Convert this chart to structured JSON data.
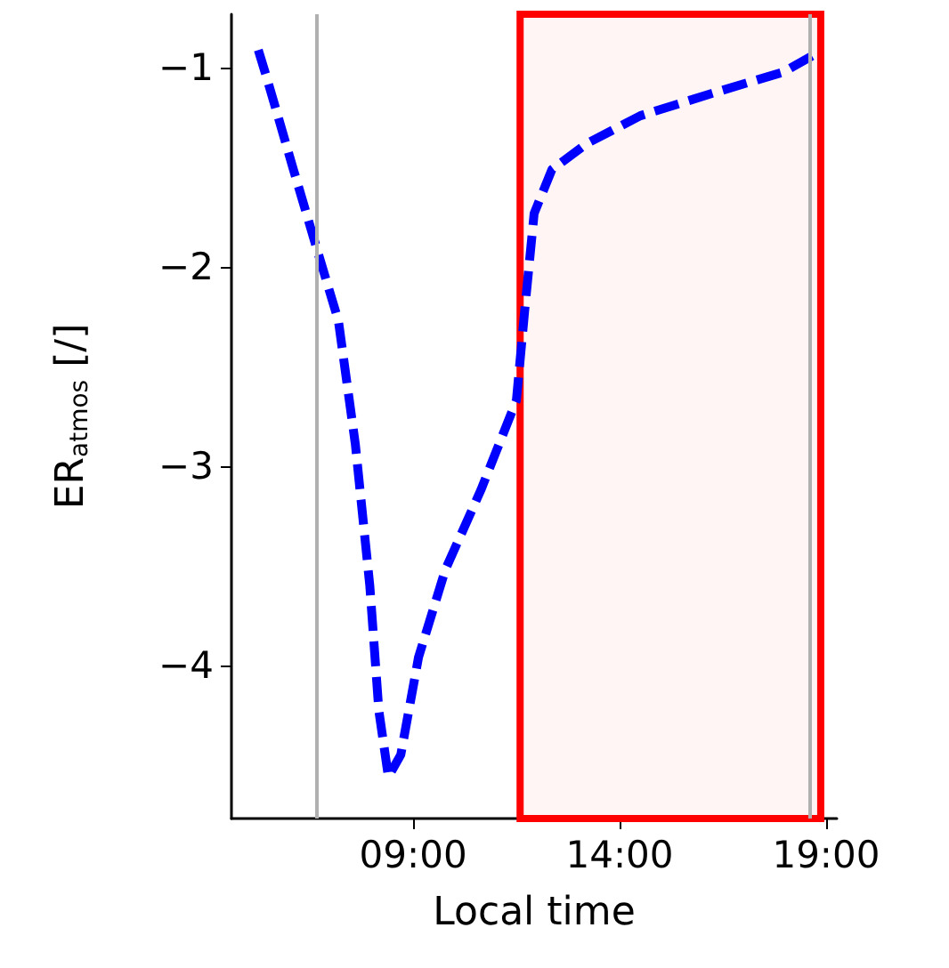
{
  "chart_data": {
    "type": "line",
    "xlabel": "Local time",
    "ylabel": "ER$_{atmos}$ [/]",
    "x": [
      5.25,
      5.47,
      6.1,
      6.67,
      7.19,
      7.6,
      7.95,
      8.17,
      8.4,
      8.7,
      9.13,
      9.78,
      10.64,
      11.5,
      11.7,
      11.93,
      12.36,
      13.2,
      14.5,
      16.2,
      17.97,
      18.74
    ],
    "series": [
      {
        "color": "#0000ff",
        "values": [
          -0.91,
          -1.06,
          -1.51,
          -1.91,
          -2.27,
          -2.89,
          -3.6,
          -4.23,
          -4.56,
          -4.45,
          -3.96,
          -3.52,
          -3.12,
          -2.67,
          -2.22,
          -1.73,
          -1.51,
          -1.38,
          -1.24,
          -1.13,
          -1.02,
          -0.93
        ]
      }
    ],
    "xlim": [
      4.6,
      19.26
    ],
    "ylim": [
      -4.77,
      -0.73
    ],
    "xticks": [
      {
        "value": 9,
        "label": "09:00"
      },
      {
        "value": 14,
        "label": "14:00"
      },
      {
        "value": 19,
        "label": "19:00"
      }
    ],
    "yticks": [
      {
        "value": -4,
        "label": "−4"
      },
      {
        "value": -3,
        "label": "−3"
      },
      {
        "value": -2,
        "label": "−2"
      },
      {
        "value": -1,
        "label": "−1"
      }
    ],
    "ref_lines": [
      {
        "axis": "x",
        "value": 6.67,
        "color": "#b0b0b0"
      },
      {
        "axis": "x",
        "value": 18.61,
        "color": "#b0b0b0"
      }
    ],
    "bands": [
      {
        "axis": "x",
        "from": 11.59,
        "to": 18.87,
        "color": "#ff0000"
      }
    ],
    "grid": false,
    "marker": "none",
    "line_style": "dashed"
  }
}
